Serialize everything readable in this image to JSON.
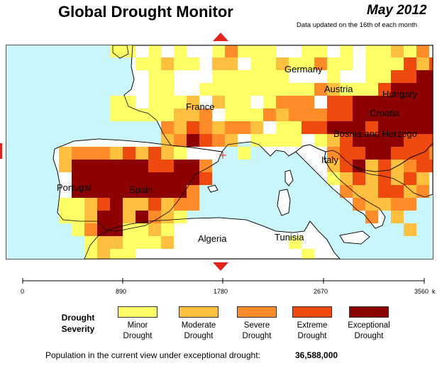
{
  "header": {
    "title": "Global Drought Monitor",
    "date": "May 2012",
    "updated_note": "Data updated on the 16th of each month"
  },
  "colors": {
    "sea": "#c8f6fa",
    "land": "#ffffff",
    "coast": "#000000",
    "minor": "#ffff66",
    "moderate": "#ffc040",
    "severe": "#ff8c28",
    "extreme": "#ee4a10",
    "exceptional": "#8c0000",
    "nav_arrow": "#e2231a"
  },
  "map": {
    "labels": [
      "Germany",
      "Austria",
      "Hungary",
      "France",
      "Croatia",
      "Bosnia and Herzego",
      "Italy",
      "Portugal",
      "Spain",
      "Algeria",
      "Tunisia"
    ],
    "navigation": [
      "pan-north",
      "pan-south",
      "pan-west"
    ]
  },
  "scale_bar": {
    "ticks": [
      "0",
      "890",
      "1780",
      "2670",
      "3560"
    ],
    "unit": "k"
  },
  "legend": {
    "title_line1": "Drought",
    "title_line2": "Severity",
    "items": [
      {
        "line1": "Minor",
        "line2": "Drought",
        "color_key": "minor"
      },
      {
        "line1": "Moderate",
        "line2": "Drought",
        "color_key": "moderate"
      },
      {
        "line1": "Severe",
        "line2": "Drought",
        "color_key": "severe"
      },
      {
        "line1": "Extreme",
        "line2": "Drought",
        "color_key": "extreme"
      },
      {
        "line1": "Exceptional",
        "line2": "Drought",
        "color_key": "exceptional"
      }
    ]
  },
  "population": {
    "label": "Population in the current view under exceptional drought:",
    "value": "36,588,000"
  }
}
